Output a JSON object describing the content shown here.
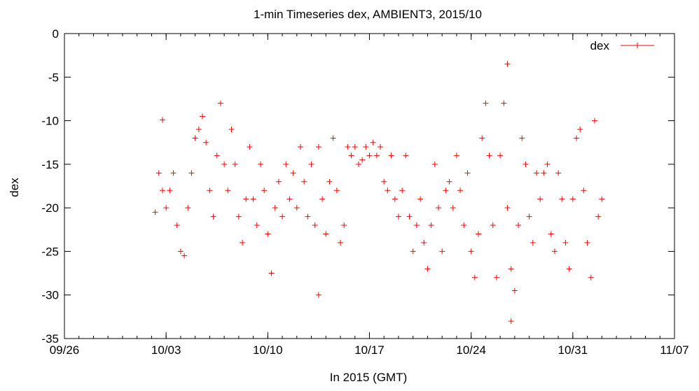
{
  "chart_data": {
    "type": "scatter",
    "title": "1-min Timeseries dex, AMBIENT3, 2015/10",
    "xlabel": "In 2015 (GMT)",
    "ylabel": "dex",
    "xlim": [
      "2015-09-26",
      "2015-11-07"
    ],
    "ylim": [
      -35,
      0
    ],
    "x_ticks": [
      "09/26",
      "10/03",
      "10/10",
      "10/17",
      "10/24",
      "10/31",
      "11/07"
    ],
    "y_ticks": [
      0,
      -5,
      -10,
      -15,
      -20,
      -25,
      -30,
      -35
    ],
    "grid": false,
    "legend": "top-right",
    "marker": "+",
    "series": [
      {
        "name": "dex",
        "color": "#ff0000",
        "data": [
          [
            "2015-10-02 06:00",
            -20.5
          ],
          [
            "2015-10-02 12:00",
            -16
          ],
          [
            "2015-10-02 18:00",
            -18
          ],
          [
            "2015-10-03 00:00",
            -20
          ],
          [
            "2015-10-03 06:00",
            -18
          ],
          [
            "2015-10-03 12:00",
            -16
          ],
          [
            "2015-10-03 18:00",
            -22
          ],
          [
            "2015-10-04 00:00",
            -25
          ],
          [
            "2015-10-04 06:00",
            -25.5
          ],
          [
            "2015-10-04 12:00",
            -20
          ],
          [
            "2015-10-04 18:00",
            -16
          ],
          [
            "2015-10-05 00:00",
            -12
          ],
          [
            "2015-10-05 06:00",
            -11
          ],
          [
            "2015-10-05 12:00",
            -9.5
          ],
          [
            "2015-10-05 18:00",
            -12.5
          ],
          [
            "2015-10-06 00:00",
            -18
          ],
          [
            "2015-10-06 06:00",
            -21
          ],
          [
            "2015-10-06 12:00",
            -14
          ],
          [
            "2015-10-06 18:00",
            -8
          ],
          [
            "2015-10-07 00:00",
            -15
          ],
          [
            "2015-10-07 06:00",
            -18
          ],
          [
            "2015-10-07 12:00",
            -11
          ],
          [
            "2015-10-07 18:00",
            -15
          ],
          [
            "2015-10-08 00:00",
            -21
          ],
          [
            "2015-10-08 06:00",
            -24
          ],
          [
            "2015-10-08 12:00",
            -19
          ],
          [
            "2015-10-08 18:00",
            -13
          ],
          [
            "2015-10-09 00:00",
            -19
          ],
          [
            "2015-10-09 06:00",
            -22
          ],
          [
            "2015-10-09 12:00",
            -15
          ],
          [
            "2015-10-09 18:00",
            -18
          ],
          [
            "2015-10-10 00:00",
            -23
          ],
          [
            "2015-10-10 06:00",
            -27.5
          ],
          [
            "2015-10-10 12:00",
            -20
          ],
          [
            "2015-10-10 18:00",
            -17
          ],
          [
            "2015-10-11 00:00",
            -21
          ],
          [
            "2015-10-11 06:00",
            -15
          ],
          [
            "2015-10-11 12:00",
            -19
          ],
          [
            "2015-10-11 18:00",
            -16
          ],
          [
            "2015-10-12 00:00",
            -20
          ],
          [
            "2015-10-12 06:00",
            -13
          ],
          [
            "2015-10-12 12:00",
            -17
          ],
          [
            "2015-10-12 18:00",
            -21
          ],
          [
            "2015-10-13 00:00",
            -15
          ],
          [
            "2015-10-13 06:00",
            -22
          ],
          [
            "2015-10-13 12:00",
            -13
          ],
          [
            "2015-10-13 18:00",
            -19
          ],
          [
            "2015-10-14 00:00",
            -23
          ],
          [
            "2015-10-14 06:00",
            -17
          ],
          [
            "2015-10-14 12:00",
            -12
          ],
          [
            "2015-10-14 18:00",
            -18
          ],
          [
            "2015-10-15 00:00",
            -24
          ],
          [
            "2015-10-15 06:00",
            -22
          ],
          [
            "2015-10-15 12:00",
            -13
          ],
          [
            "2015-10-15 18:00",
            -14
          ],
          [
            "2015-10-16 00:00",
            -13
          ],
          [
            "2015-10-16 06:00",
            -15
          ],
          [
            "2015-10-16 12:00",
            -14.5
          ],
          [
            "2015-10-16 18:00",
            -13
          ],
          [
            "2015-10-17 00:00",
            -14
          ],
          [
            "2015-10-17 06:00",
            -12.5
          ],
          [
            "2015-10-17 12:00",
            -14
          ],
          [
            "2015-10-17 18:00",
            -13
          ],
          [
            "2015-10-18 00:00",
            -17
          ],
          [
            "2015-10-18 06:00",
            -18
          ],
          [
            "2015-10-18 12:00",
            -14
          ],
          [
            "2015-10-18 18:00",
            -19
          ],
          [
            "2015-10-19 00:00",
            -21
          ],
          [
            "2015-10-19 06:00",
            -18
          ],
          [
            "2015-10-19 12:00",
            -14
          ],
          [
            "2015-10-19 18:00",
            -21
          ],
          [
            "2015-10-20 00:00",
            -25
          ],
          [
            "2015-10-20 06:00",
            -22
          ],
          [
            "2015-10-20 12:00",
            -19
          ],
          [
            "2015-10-20 18:00",
            -24
          ],
          [
            "2015-10-21 00:00",
            -27
          ],
          [
            "2015-10-21 06:00",
            -22
          ],
          [
            "2015-10-21 12:00",
            -15
          ],
          [
            "2015-10-21 18:00",
            -20
          ],
          [
            "2015-10-22 00:00",
            -25
          ],
          [
            "2015-10-22 06:00",
            -18
          ],
          [
            "2015-10-22 12:00",
            -17
          ],
          [
            "2015-10-22 18:00",
            -20
          ],
          [
            "2015-10-23 00:00",
            -14
          ],
          [
            "2015-10-23 06:00",
            -18
          ],
          [
            "2015-10-23 12:00",
            -22
          ],
          [
            "2015-10-23 18:00",
            -16
          ],
          [
            "2015-10-24 00:00",
            -25
          ],
          [
            "2015-10-24 06:00",
            -28
          ],
          [
            "2015-10-24 12:00",
            -23
          ],
          [
            "2015-10-24 18:00",
            -12
          ],
          [
            "2015-10-25 00:00",
            -8
          ],
          [
            "2015-10-25 06:00",
            -14
          ],
          [
            "2015-10-25 12:00",
            -22
          ],
          [
            "2015-10-25 18:00",
            -28
          ],
          [
            "2015-10-26 00:00",
            -14
          ],
          [
            "2015-10-26 06:00",
            -8
          ],
          [
            "2015-10-26 12:00",
            -20
          ],
          [
            "2015-10-26 18:00",
            -27
          ],
          [
            "2015-10-27 00:00",
            -29.5
          ],
          [
            "2015-10-27 06:00",
            -22
          ],
          [
            "2015-10-27 12:00",
            -12
          ],
          [
            "2015-10-27 18:00",
            -15
          ],
          [
            "2015-10-28 00:00",
            -21
          ],
          [
            "2015-10-28 06:00",
            -24
          ],
          [
            "2015-10-28 12:00",
            -16
          ],
          [
            "2015-10-28 18:00",
            -19
          ],
          [
            "2015-10-29 00:00",
            -16
          ],
          [
            "2015-10-29 06:00",
            -15
          ],
          [
            "2015-10-29 12:00",
            -23
          ],
          [
            "2015-10-29 18:00",
            -25
          ],
          [
            "2015-10-30 00:00",
            -16
          ],
          [
            "2015-10-30 06:00",
            -19
          ],
          [
            "2015-10-30 12:00",
            -24
          ],
          [
            "2015-10-30 18:00",
            -27
          ],
          [
            "2015-10-31 00:00",
            -19
          ],
          [
            "2015-10-31 06:00",
            -12
          ],
          [
            "2015-10-31 12:00",
            -11
          ],
          [
            "2015-10-31 18:00",
            -18
          ],
          [
            "2015-11-01 00:00",
            -24
          ],
          [
            "2015-11-01 06:00",
            -28
          ],
          [
            "2015-11-01 12:00",
            -10
          ],
          [
            "2015-11-01 18:00",
            -21
          ],
          [
            "2015-11-02 00:00",
            -19
          ],
          [
            "2015-10-26 12:00",
            -3.5
          ],
          [
            "2015-10-26 18:00",
            -33
          ],
          [
            "2015-10-02 18:00",
            -9.9
          ],
          [
            "2015-10-13 12:00",
            -30
          ]
        ]
      }
    ]
  }
}
